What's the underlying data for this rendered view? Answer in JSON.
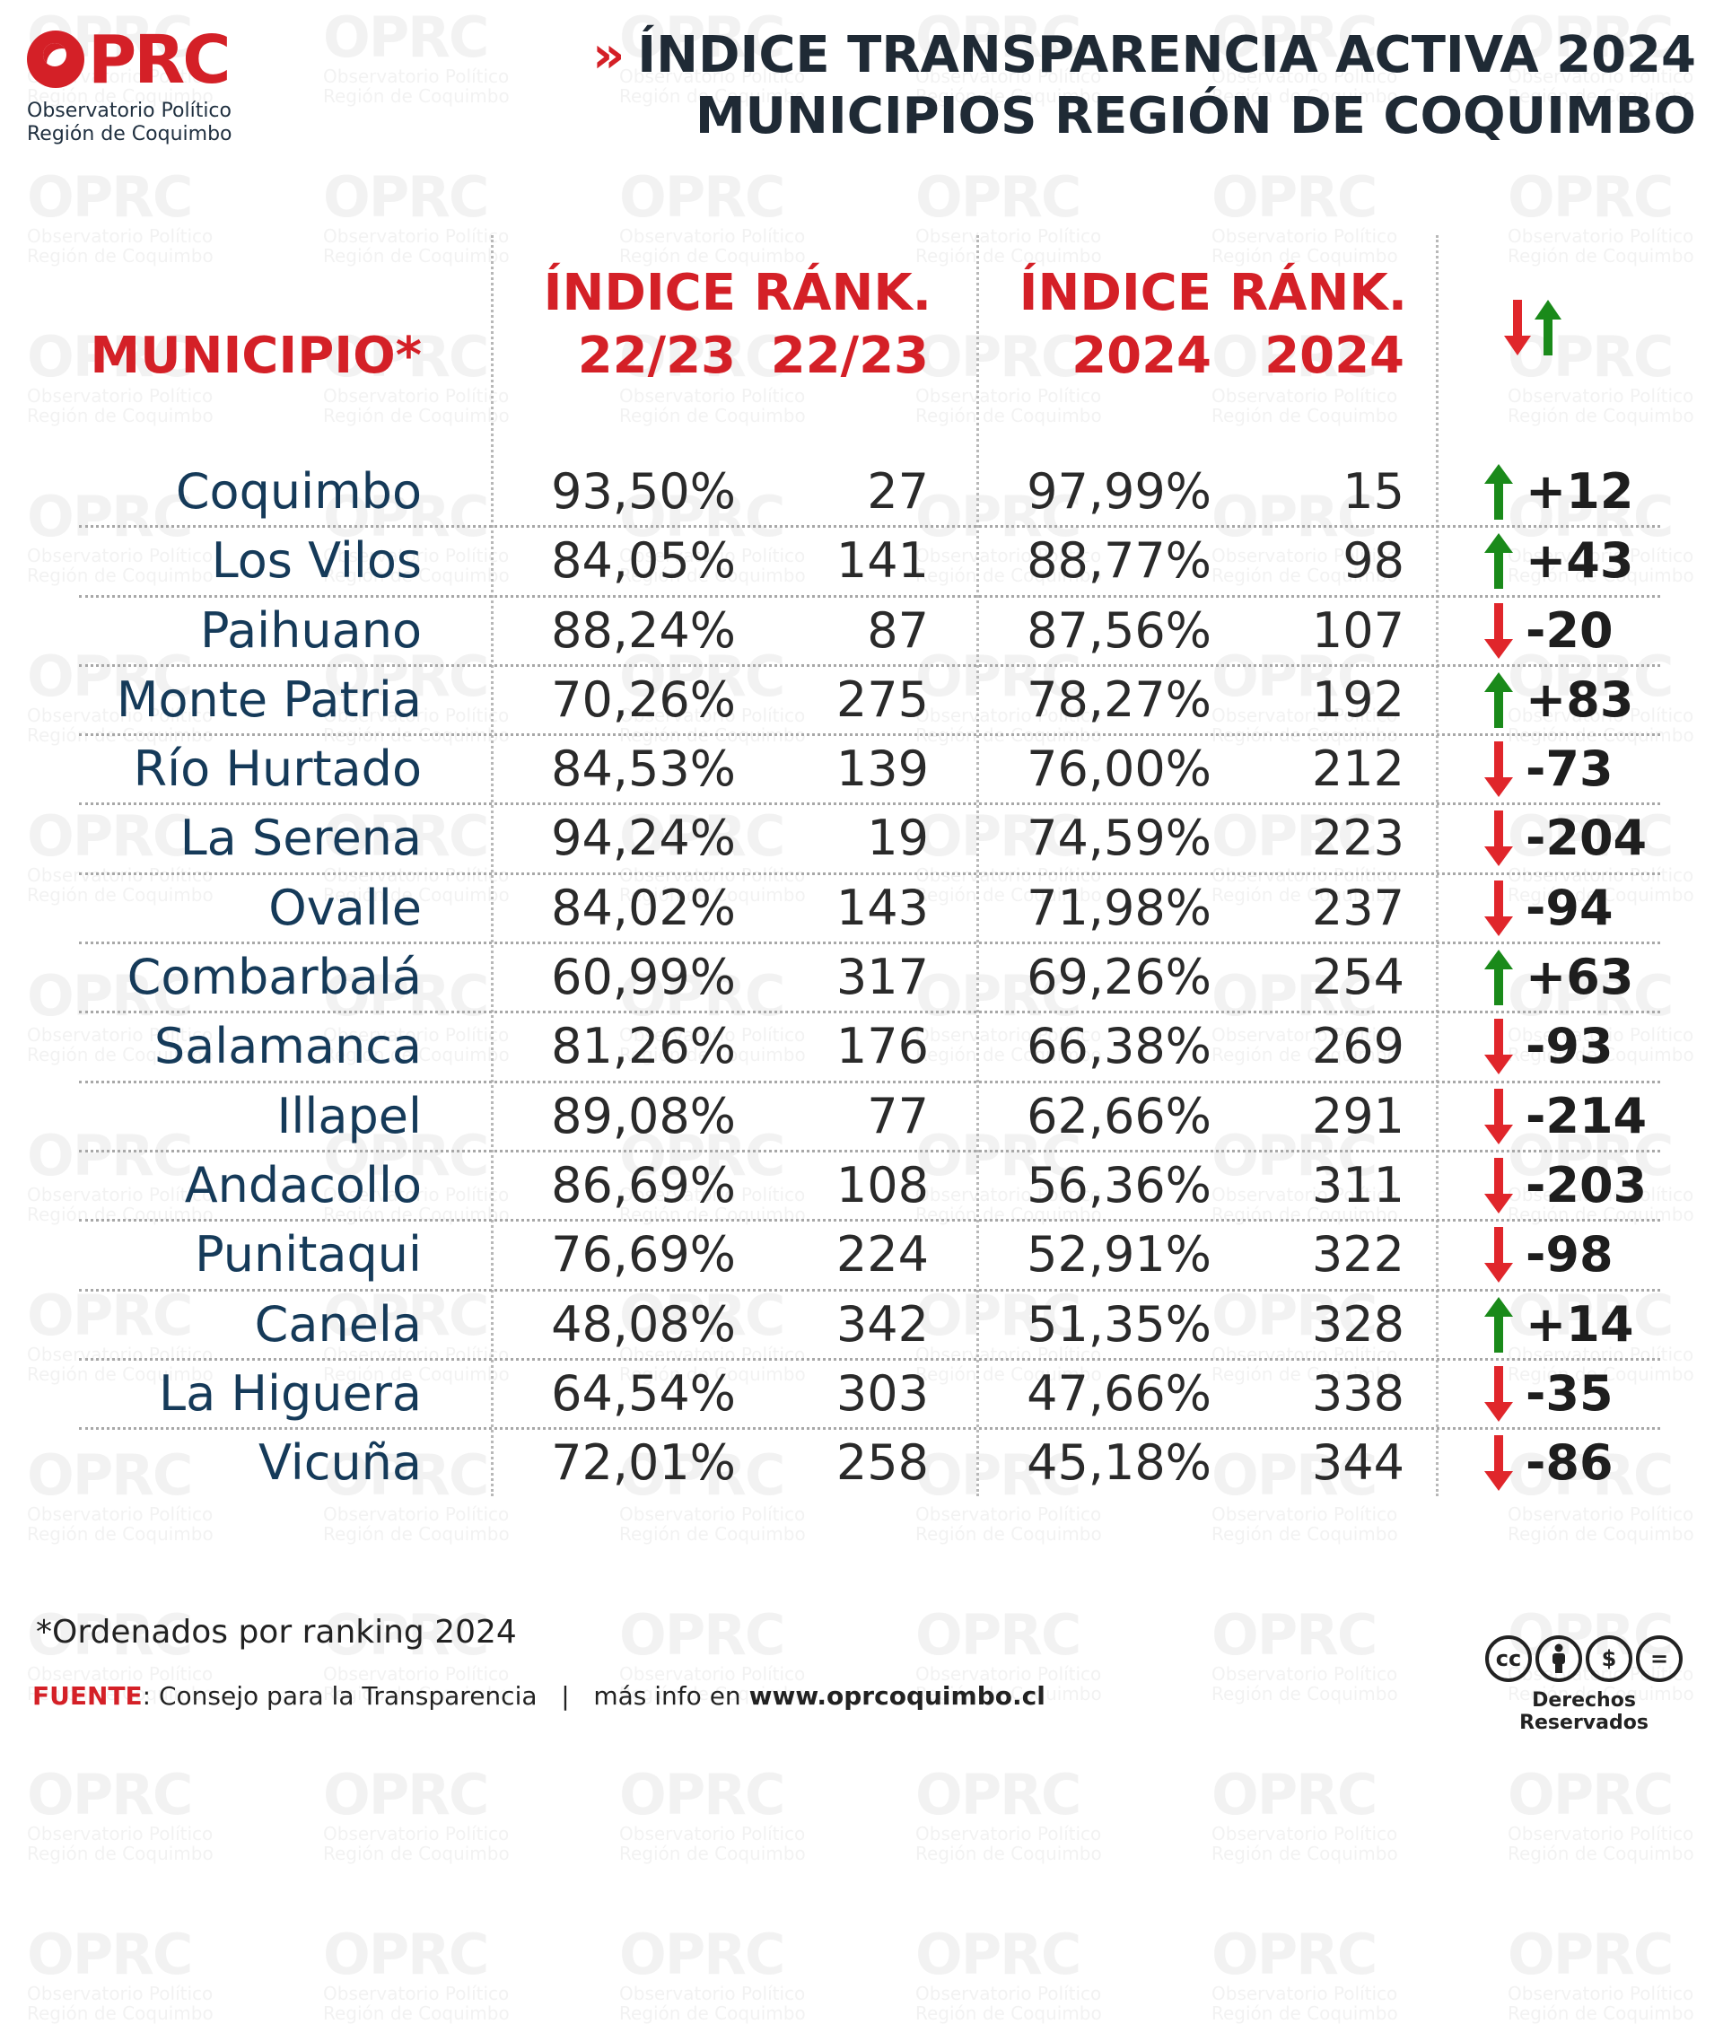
{
  "logo": {
    "text": "OPRC",
    "subtitle_line1": "Observatorio Político",
    "subtitle_line2": "Región de Coquimbo"
  },
  "title": {
    "chevron": "»",
    "line1": "ÍNDICE TRANSPARENCIA ACTIVA 2024",
    "line2": "MUNICIPIOS REGIÓN DE COQUIMBO"
  },
  "headers": {
    "municipio": "MUNICIPIO*",
    "indice_2223_l1": "ÍNDICE",
    "indice_2223_l2": "22/23",
    "rank_2223_l1": "RÁNK.",
    "rank_2223_l2": "22/23",
    "indice_2024_l1": "ÍNDICE",
    "indice_2024_l2": "2024",
    "rank_2024_l1": "RÁNK.",
    "rank_2024_l2": "2024"
  },
  "colors": {
    "accent": "#d42027",
    "up": "#1a8a1a",
    "down": "#e0262b",
    "name": "#153a59"
  },
  "rows": [
    {
      "municipio": "Coquimbo",
      "indice_2223": "93,50%",
      "rank_2223": "27",
      "indice_2024": "97,99%",
      "rank_2024": "15",
      "direction": "up",
      "delta": "+12"
    },
    {
      "municipio": "Los Vilos",
      "indice_2223": "84,05%",
      "rank_2223": "141",
      "indice_2024": "88,77%",
      "rank_2024": "98",
      "direction": "up",
      "delta": "+43"
    },
    {
      "municipio": "Paihuano",
      "indice_2223": "88,24%",
      "rank_2223": "87",
      "indice_2024": "87,56%",
      "rank_2024": "107",
      "direction": "down",
      "delta": "-20"
    },
    {
      "municipio": "Monte Patria",
      "indice_2223": "70,26%",
      "rank_2223": "275",
      "indice_2024": "78,27%",
      "rank_2024": "192",
      "direction": "up",
      "delta": "+83"
    },
    {
      "municipio": "Río Hurtado",
      "indice_2223": "84,53%",
      "rank_2223": "139",
      "indice_2024": "76,00%",
      "rank_2024": "212",
      "direction": "down",
      "delta": "-73"
    },
    {
      "municipio": "La Serena",
      "indice_2223": "94,24%",
      "rank_2223": "19",
      "indice_2024": "74,59%",
      "rank_2024": "223",
      "direction": "down",
      "delta": "-204"
    },
    {
      "municipio": "Ovalle",
      "indice_2223": "84,02%",
      "rank_2223": "143",
      "indice_2024": "71,98%",
      "rank_2024": "237",
      "direction": "down",
      "delta": "-94"
    },
    {
      "municipio": "Combarbalá",
      "indice_2223": "60,99%",
      "rank_2223": "317",
      "indice_2024": "69,26%",
      "rank_2024": "254",
      "direction": "up",
      "delta": "+63"
    },
    {
      "municipio": "Salamanca",
      "indice_2223": "81,26%",
      "rank_2223": "176",
      "indice_2024": "66,38%",
      "rank_2024": "269",
      "direction": "down",
      "delta": "-93"
    },
    {
      "municipio": "Illapel",
      "indice_2223": "89,08%",
      "rank_2223": "77",
      "indice_2024": "62,66%",
      "rank_2024": "291",
      "direction": "down",
      "delta": "-214"
    },
    {
      "municipio": "Andacollo",
      "indice_2223": "86,69%",
      "rank_2223": "108",
      "indice_2024": "56,36%",
      "rank_2024": "311",
      "direction": "down",
      "delta": "-203"
    },
    {
      "municipio": "Punitaqui",
      "indice_2223": "76,69%",
      "rank_2223": "224",
      "indice_2024": "52,91%",
      "rank_2024": "322",
      "direction": "down",
      "delta": "-98"
    },
    {
      "municipio": "Canela",
      "indice_2223": "48,08%",
      "rank_2223": "342",
      "indice_2024": "51,35%",
      "rank_2024": "328",
      "direction": "up",
      "delta": "+14"
    },
    {
      "municipio": "La Higuera",
      "indice_2223": "64,54%",
      "rank_2223": "303",
      "indice_2024": "47,66%",
      "rank_2024": "338",
      "direction": "down",
      "delta": "-35"
    },
    {
      "municipio": "Vicuña",
      "indice_2223": "72,01%",
      "rank_2223": "258",
      "indice_2024": "45,18%",
      "rank_2024": "344",
      "direction": "down",
      "delta": "-86"
    }
  ],
  "footer": {
    "note": "*Ordenados por ranking 2024",
    "source_label": "FUENTE",
    "source_text": ": Consejo para la Transparencia",
    "separator": "|",
    "more_info": "más info en ",
    "website": "www.oprcoquimbo.cl",
    "rights": "Derechos Reservados",
    "cc_icons": [
      "cc-icon",
      "by-icon",
      "nc-icon",
      "nd-icon"
    ]
  }
}
